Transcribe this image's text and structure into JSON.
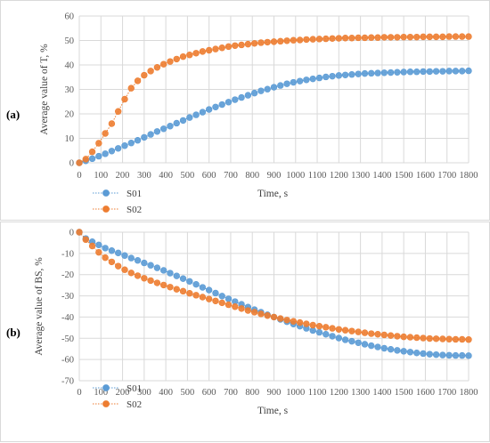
{
  "panels": {
    "a_label": "(a)",
    "b_label": "(b)"
  },
  "colors": {
    "s01": "#5b9bd5",
    "s02": "#ed7d31",
    "grid": "#d9d9d9"
  },
  "chart_data": [
    {
      "type": "line",
      "title": "",
      "xlabel": "Time, s",
      "ylabel": "Average value of T, %",
      "xlim": [
        0,
        1800
      ],
      "ylim": [
        0,
        60
      ],
      "xticks": [
        "0",
        "100",
        "200",
        "300",
        "400",
        "500",
        "600",
        "700",
        "800",
        "900",
        "1000",
        "1100",
        "1200",
        "1300",
        "1400",
        "1500",
        "1600",
        "1700",
        "1800"
      ],
      "yticks": [
        "0",
        "10",
        "20",
        "30",
        "40",
        "50",
        "60"
      ],
      "grid": true,
      "legend": "bottom-left",
      "x": [
        0,
        30,
        60,
        90,
        120,
        150,
        180,
        210,
        240,
        270,
        300,
        330,
        360,
        390,
        420,
        450,
        480,
        510,
        540,
        570,
        600,
        630,
        660,
        690,
        720,
        750,
        780,
        810,
        840,
        870,
        900,
        930,
        960,
        990,
        1020,
        1050,
        1080,
        1110,
        1140,
        1170,
        1200,
        1230,
        1260,
        1290,
        1320,
        1350,
        1380,
        1410,
        1440,
        1470,
        1500,
        1530,
        1560,
        1590,
        1620,
        1650,
        1680,
        1710,
        1740,
        1770,
        1800
      ],
      "series": [
        {
          "name": "S01",
          "values": [
            0,
            0.8,
            1.7,
            2.7,
            3.7,
            4.8,
            5.9,
            7.0,
            8.1,
            9.2,
            10.4,
            11.6,
            12.8,
            13.9,
            15.0,
            16.2,
            17.3,
            18.5,
            19.6,
            20.7,
            21.8,
            22.8,
            23.8,
            24.8,
            25.8,
            26.7,
            27.6,
            28.5,
            29.4,
            30.1,
            30.9,
            31.6,
            32.3,
            32.9,
            33.4,
            33.9,
            34.3,
            34.7,
            35.1,
            35.4,
            35.7,
            35.9,
            36.1,
            36.3,
            36.5,
            36.6,
            36.7,
            36.8,
            36.9,
            37.0,
            37.1,
            37.2,
            37.2,
            37.3,
            37.3,
            37.4,
            37.4,
            37.5,
            37.5,
            37.5,
            37.6
          ]
        },
        {
          "name": "S02",
          "values": [
            0,
            1.5,
            4.5,
            8.0,
            12.0,
            16.0,
            21.0,
            26.0,
            30.5,
            33.5,
            35.8,
            37.5,
            39.0,
            40.3,
            41.4,
            42.4,
            43.4,
            44.1,
            44.8,
            45.5,
            46.0,
            46.5,
            47.0,
            47.5,
            47.9,
            48.2,
            48.5,
            48.8,
            49.1,
            49.3,
            49.5,
            49.7,
            49.9,
            50.1,
            50.2,
            50.4,
            50.5,
            50.6,
            50.7,
            50.8,
            50.9,
            51.0,
            51.0,
            51.1,
            51.1,
            51.2,
            51.2,
            51.3,
            51.3,
            51.3,
            51.4,
            51.4,
            51.4,
            51.5,
            51.5,
            51.5,
            51.5,
            51.6,
            51.6,
            51.6,
            51.6
          ]
        }
      ]
    },
    {
      "type": "line",
      "title": "",
      "xlabel": "Time, s",
      "ylabel": "Average value of BS, %",
      "xlim": [
        0,
        1800
      ],
      "ylim": [
        -70,
        0
      ],
      "xticks": [
        "0",
        "100",
        "200",
        "300",
        "400",
        "500",
        "600",
        "700",
        "800",
        "900",
        "1000",
        "1100",
        "1200",
        "1300",
        "1400",
        "1500",
        "1600",
        "1700",
        "1800"
      ],
      "yticks": [
        "0",
        "-10",
        "-20",
        "-30",
        "-40",
        "-50",
        "-60",
        "-70"
      ],
      "grid": true,
      "legend": "bottom-left",
      "x": [
        0,
        30,
        60,
        90,
        120,
        150,
        180,
        210,
        240,
        270,
        300,
        330,
        360,
        390,
        420,
        450,
        480,
        510,
        540,
        570,
        600,
        630,
        660,
        690,
        720,
        750,
        780,
        810,
        840,
        870,
        900,
        930,
        960,
        990,
        1020,
        1050,
        1080,
        1110,
        1140,
        1170,
        1200,
        1230,
        1260,
        1290,
        1320,
        1350,
        1380,
        1410,
        1440,
        1470,
        1500,
        1530,
        1560,
        1590,
        1620,
        1650,
        1680,
        1710,
        1740,
        1770,
        1800
      ],
      "series": [
        {
          "name": "S01",
          "values": [
            0,
            -3,
            -4.5,
            -6,
            -7.5,
            -8.7,
            -9.8,
            -11,
            -12.2,
            -13.3,
            -14.5,
            -15.6,
            -16.8,
            -18,
            -19.3,
            -20.6,
            -21.9,
            -23.2,
            -24.6,
            -26,
            -27.3,
            -28.7,
            -30.1,
            -31.4,
            -32.7,
            -34,
            -35.3,
            -36.5,
            -37.7,
            -38.9,
            -40,
            -41.1,
            -42.2,
            -43.3,
            -44.3,
            -45.3,
            -46.3,
            -47.2,
            -48.1,
            -49,
            -49.9,
            -50.7,
            -51.4,
            -52.1,
            -52.8,
            -53.5,
            -54.1,
            -54.7,
            -55.2,
            -55.7,
            -56.1,
            -56.5,
            -56.9,
            -57.2,
            -57.5,
            -57.7,
            -57.9,
            -58,
            -58.1,
            -58.1,
            -58.2
          ]
        },
        {
          "name": "S02",
          "values": [
            0,
            -3.5,
            -6.5,
            -9.5,
            -12,
            -14,
            -16,
            -17.7,
            -19.2,
            -20.5,
            -21.7,
            -22.8,
            -23.9,
            -24.9,
            -25.9,
            -26.9,
            -27.8,
            -28.8,
            -29.7,
            -30.6,
            -31.5,
            -32.4,
            -33.3,
            -34.2,
            -35.1,
            -36,
            -36.9,
            -37.7,
            -38.5,
            -39.3,
            -40,
            -40.7,
            -41.4,
            -42,
            -42.6,
            -43.2,
            -43.8,
            -44.3,
            -44.8,
            -45.3,
            -45.8,
            -46.2,
            -46.6,
            -47,
            -47.4,
            -47.8,
            -48.1,
            -48.4,
            -48.7,
            -49,
            -49.3,
            -49.5,
            -49.7,
            -49.9,
            -50.1,
            -50.2,
            -50.3,
            -50.4,
            -50.5,
            -50.5,
            -50.6
          ]
        }
      ]
    }
  ]
}
